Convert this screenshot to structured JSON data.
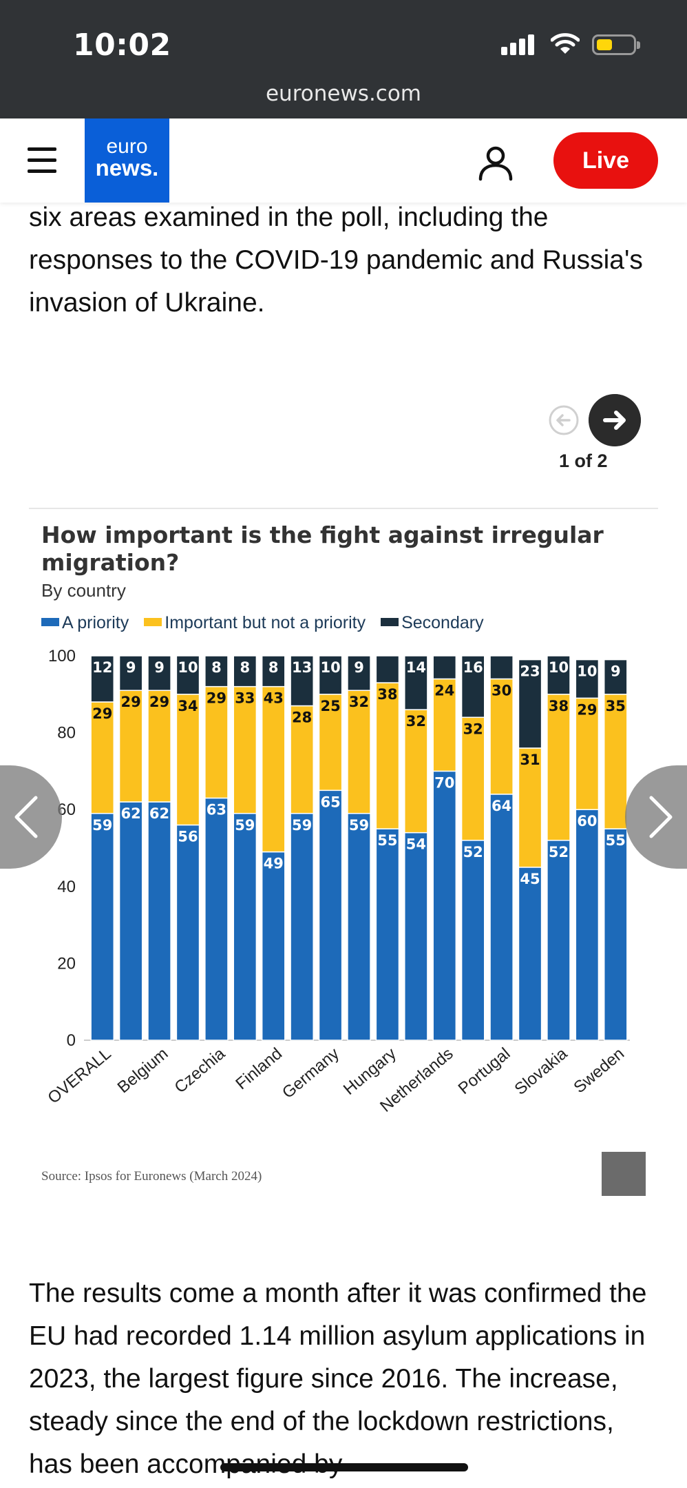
{
  "status_bar": {
    "time": "10:02",
    "url": "euronews.com"
  },
  "header": {
    "logo_top": "euro",
    "logo_bottom": "news.",
    "live_label": "Live"
  },
  "article": {
    "paragraph_before": "six areas examined in the poll, including the responses to the COVID-19 pandemic and Russia's invasion of Ukraine.",
    "paragraph_after": "The results come a month after it was confirmed the EU had recorded 1.14 million asylum applications in 2023, the largest figure since 2016. The increase, steady since the end of the lockdown restrictions, has been accompanied by"
  },
  "carousel": {
    "pager": "1 of 2"
  },
  "chart_source": "Source: Ipsos for Euronews (March 2024)",
  "colors": {
    "priority": "#1d6ab9",
    "important": "#fbc11e",
    "secondary": "#1b2f3d",
    "live": "#e8110f",
    "logo": "#0a5fd8"
  },
  "chart_data": {
    "type": "bar",
    "stacked": true,
    "title": "How important is the fight against irregular migration?",
    "subtitle": "By country",
    "ylim": [
      0,
      100
    ],
    "yticks": [
      0,
      20,
      40,
      60,
      80,
      100
    ],
    "categories": [
      "OVERALL",
      "",
      "Belgium",
      "",
      "Czechia",
      "",
      "Finland",
      "",
      "Germany",
      "",
      "Hungary",
      "",
      "Netherlands",
      "",
      "Portugal",
      "",
      "Slovakia",
      "",
      "Sweden"
    ],
    "series": [
      {
        "name": "A priority",
        "color": "#1d6ab9",
        "values": [
          59,
          62,
          62,
          56,
          63,
          59,
          49,
          59,
          65,
          59,
          55,
          54,
          70,
          52,
          64,
          45,
          52,
          60,
          55
        ]
      },
      {
        "name": "Important but not a priority",
        "color": "#fbc11e",
        "values": [
          29,
          29,
          29,
          34,
          29,
          33,
          43,
          28,
          25,
          32,
          38,
          32,
          24,
          32,
          30,
          31,
          38,
          29,
          35
        ]
      },
      {
        "name": "Secondary",
        "color": "#1b2f3d",
        "values": [
          12,
          9,
          9,
          10,
          8,
          8,
          8,
          13,
          10,
          9,
          null,
          14,
          null,
          16,
          null,
          23,
          10,
          10,
          9
        ]
      }
    ],
    "legend": "top-left",
    "grid": false
  }
}
